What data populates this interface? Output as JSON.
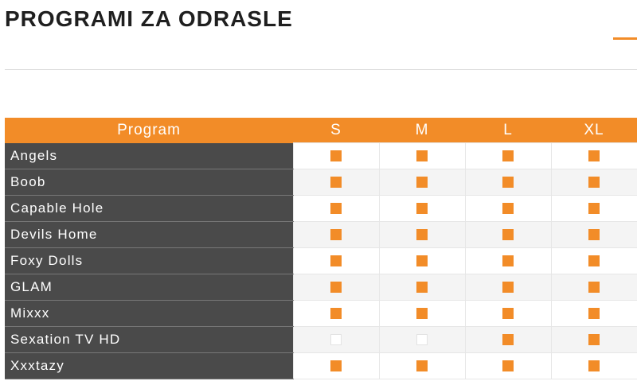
{
  "page": {
    "title": "PROGRAMI ZA ODRASLE",
    "accent_color": "#f28c28"
  },
  "table": {
    "header": {
      "program": "Program",
      "packages": [
        "S",
        "M",
        "L",
        "XL"
      ]
    },
    "rows": [
      {
        "name": "Angels",
        "availability": [
          true,
          true,
          true,
          true
        ]
      },
      {
        "name": "Boob",
        "availability": [
          true,
          true,
          true,
          true
        ]
      },
      {
        "name": "Capable Hole",
        "availability": [
          true,
          true,
          true,
          true
        ]
      },
      {
        "name": "Devils Home",
        "availability": [
          true,
          true,
          true,
          true
        ]
      },
      {
        "name": "Foxy Dolls",
        "availability": [
          true,
          true,
          true,
          true
        ]
      },
      {
        "name": "GLAM",
        "availability": [
          true,
          true,
          true,
          true
        ]
      },
      {
        "name": "Mixxx",
        "availability": [
          true,
          true,
          true,
          true
        ]
      },
      {
        "name": "Sexation TV HD",
        "availability": [
          false,
          false,
          true,
          true
        ]
      },
      {
        "name": "Xxxtazy",
        "availability": [
          true,
          true,
          true,
          true
        ]
      }
    ],
    "colors": {
      "header_bg": "#f28c28",
      "name_cell_bg": "#4a4a4a",
      "marker_on": "#f28c28"
    },
    "icons": {
      "available": "filled-square-icon",
      "unavailable": "empty-square-icon"
    }
  }
}
